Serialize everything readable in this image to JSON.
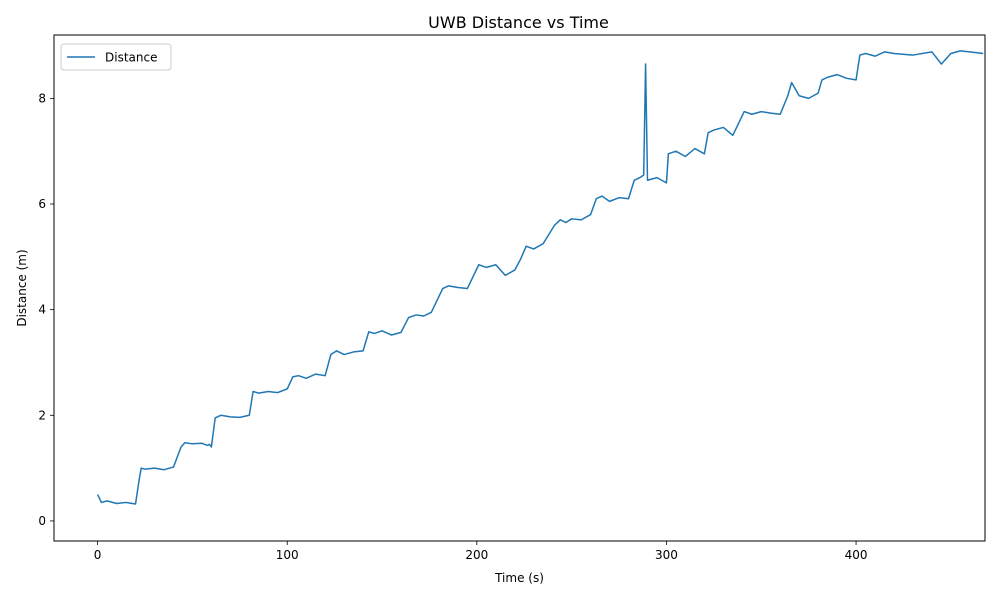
{
  "chart_data": {
    "type": "line",
    "title": "UWB Distance vs Time",
    "xlabel": "Time (s)",
    "ylabel": "Distance (m)",
    "xlim": [
      -23,
      468
    ],
    "ylim": [
      -0.38,
      9.2
    ],
    "xticks": [
      0,
      100,
      200,
      300,
      400
    ],
    "yticks": [
      0,
      2,
      4,
      6,
      8
    ],
    "legend": "top-left",
    "grid": false,
    "series": [
      {
        "name": "Distance",
        "color": "#1f77b4",
        "x": [
          0,
          2,
          5,
          10,
          15,
          20,
          22,
          23,
          25,
          30,
          35,
          40,
          44,
          46,
          50,
          55,
          58,
          59,
          60,
          62,
          65,
          70,
          75,
          80,
          82,
          85,
          90,
          95,
          100,
          103,
          106,
          110,
          115,
          120,
          123,
          126,
          130,
          135,
          140,
          143,
          146,
          150,
          155,
          160,
          164,
          168,
          172,
          176,
          182,
          185,
          190,
          195,
          201,
          205,
          210,
          215,
          220,
          223,
          226,
          230,
          235,
          241,
          244,
          247,
          250,
          255,
          260,
          263,
          266,
          270,
          275,
          280,
          283,
          286,
          288,
          289,
          290,
          295,
          300,
          301,
          305,
          310,
          315,
          320,
          322,
          325,
          330,
          335,
          341,
          345,
          350,
          355,
          360,
          364,
          366,
          370,
          375,
          380,
          382,
          385,
          390,
          395,
          400,
          402,
          405,
          410,
          415,
          420,
          430,
          440,
          445,
          450,
          455,
          460,
          467
        ],
        "y": [
          0.5,
          0.35,
          0.38,
          0.33,
          0.35,
          0.32,
          0.8,
          1.0,
          0.98,
          1.0,
          0.97,
          1.02,
          1.4,
          1.48,
          1.46,
          1.47,
          1.43,
          1.45,
          1.4,
          1.95,
          2.0,
          1.97,
          1.96,
          2.0,
          2.45,
          2.42,
          2.45,
          2.43,
          2.5,
          2.73,
          2.75,
          2.7,
          2.78,
          2.75,
          3.15,
          3.22,
          3.15,
          3.2,
          3.22,
          3.58,
          3.55,
          3.6,
          3.52,
          3.57,
          3.85,
          3.9,
          3.88,
          3.95,
          4.4,
          4.45,
          4.42,
          4.4,
          4.85,
          4.8,
          4.85,
          4.65,
          4.75,
          4.95,
          5.2,
          5.15,
          5.25,
          5.6,
          5.7,
          5.65,
          5.72,
          5.7,
          5.8,
          6.1,
          6.15,
          6.05,
          6.12,
          6.1,
          6.45,
          6.5,
          6.55,
          8.65,
          6.45,
          6.5,
          6.4,
          6.95,
          7.0,
          6.9,
          7.05,
          6.95,
          7.35,
          7.4,
          7.45,
          7.3,
          7.75,
          7.7,
          7.75,
          7.72,
          7.7,
          8.05,
          8.3,
          8.05,
          8.0,
          8.1,
          8.35,
          8.4,
          8.45,
          8.38,
          8.35,
          8.82,
          8.85,
          8.8,
          8.88,
          8.85,
          8.82,
          8.88,
          8.65,
          8.85,
          8.9,
          8.88,
          8.85
        ]
      }
    ]
  }
}
